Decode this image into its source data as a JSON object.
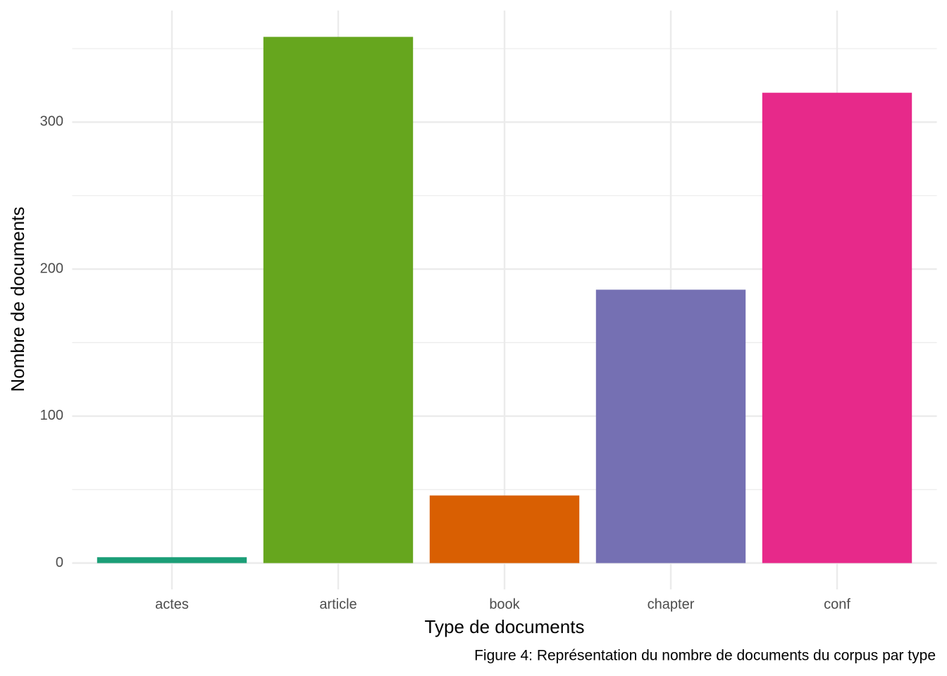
{
  "chart_data": {
    "type": "bar",
    "x_label": "Type de documents",
    "y_label": "Nombre de documents",
    "caption": "Figure 4: Représentation du nombre de documents du corpus par type",
    "categories": [
      "actes",
      "article",
      "book",
      "chapter",
      "conf"
    ],
    "values": [
      4,
      358,
      46,
      186,
      320
    ],
    "colors": [
      "#1b9e77",
      "#66a61e",
      "#d95f02",
      "#7570b3",
      "#e7298a"
    ],
    "ylim": [
      -17.9,
      375.9
    ],
    "yticks": [
      0,
      100,
      200,
      300
    ],
    "minor_yticks": [
      50,
      150,
      250,
      350
    ],
    "grid": true
  }
}
